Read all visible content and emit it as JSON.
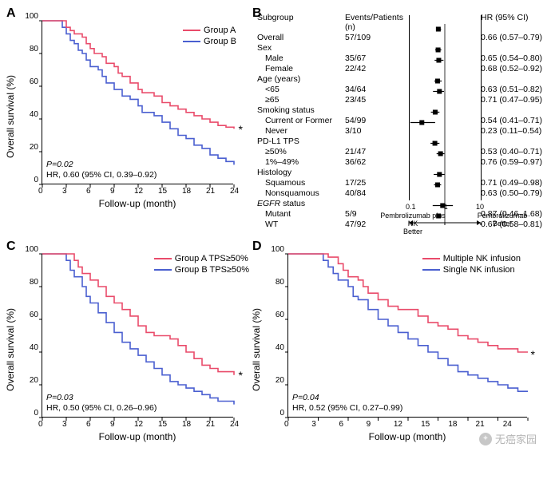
{
  "colors": {
    "groupA": "#e94b6a",
    "groupB": "#4a5fd0",
    "axis": "#000000",
    "forest_marker": "#000000",
    "background": "#ffffff"
  },
  "typography": {
    "axis_label_fontsize": 12,
    "tick_fontsize": 10,
    "legend_fontsize": 11,
    "stats_fontsize": 10.5,
    "panel_label_fontsize": 16,
    "forest_fontsize": 10.5
  },
  "panelA": {
    "label": "A",
    "type": "kaplan-meier",
    "ylabel": "Overall survival (%)",
    "xlabel": "Follow-up (month)",
    "xlim": [
      0,
      24
    ],
    "xtick_step": 3,
    "ylim": [
      0,
      100
    ],
    "ytick_step": 20,
    "legend": [
      {
        "label": "Group A",
        "color": "#e94b6a"
      },
      {
        "label": "Group B",
        "color": "#4a5fd0"
      }
    ],
    "stats_p": "P=0.02",
    "stats_hr": "HR, 0.60 (95% CI, 0.39–0.92)",
    "star": "*",
    "series": {
      "groupA": [
        [
          0,
          100
        ],
        [
          2,
          100
        ],
        [
          3,
          96
        ],
        [
          3.5,
          94
        ],
        [
          4,
          92
        ],
        [
          5,
          90
        ],
        [
          5.5,
          86
        ],
        [
          6,
          83
        ],
        [
          6.5,
          80
        ],
        [
          7.5,
          78
        ],
        [
          8,
          74
        ],
        [
          9,
          72
        ],
        [
          9.5,
          68
        ],
        [
          10,
          66
        ],
        [
          11,
          62
        ],
        [
          12,
          58
        ],
        [
          12.5,
          56
        ],
        [
          14,
          54
        ],
        [
          15,
          50
        ],
        [
          16,
          48
        ],
        [
          17,
          46
        ],
        [
          18,
          44
        ],
        [
          19,
          42
        ],
        [
          20,
          40
        ],
        [
          21,
          38
        ],
        [
          22,
          36
        ],
        [
          23,
          35
        ],
        [
          24,
          34
        ]
      ],
      "groupB": [
        [
          0,
          100
        ],
        [
          2,
          100
        ],
        [
          2.5,
          96
        ],
        [
          3,
          92
        ],
        [
          3.5,
          88
        ],
        [
          4,
          86
        ],
        [
          4.5,
          82
        ],
        [
          5,
          80
        ],
        [
          5.5,
          76
        ],
        [
          6,
          72
        ],
        [
          7,
          70
        ],
        [
          7.5,
          66
        ],
        [
          8,
          62
        ],
        [
          9,
          58
        ],
        [
          10,
          54
        ],
        [
          11,
          52
        ],
        [
          12,
          48
        ],
        [
          12.5,
          44
        ],
        [
          14,
          42
        ],
        [
          15,
          38
        ],
        [
          16,
          34
        ],
        [
          17,
          30
        ],
        [
          18,
          28
        ],
        [
          19,
          24
        ],
        [
          20,
          22
        ],
        [
          21,
          18
        ],
        [
          22,
          16
        ],
        [
          23,
          14
        ],
        [
          24,
          12
        ]
      ]
    }
  },
  "panelB": {
    "label": "B",
    "type": "forest",
    "headers": {
      "subgroup": "Subgroup",
      "events": "Events/Patients (n)",
      "hr": "HR (95% CI)"
    },
    "x_scale": "log",
    "xlim": [
      0.1,
      10
    ],
    "xticks": [
      0.1,
      1,
      10
    ],
    "ref_line": 1,
    "bottom_left": "Pembrolizumab plus NK\nBetter",
    "bottom_right": "Pembrolizumab\nBetter",
    "rows": [
      {
        "label": "Overall",
        "events": "57/109",
        "hr": 0.66,
        "lo": 0.57,
        "hi": 0.79,
        "display": "0.66 (0.57–0.79)",
        "indent": false
      },
      {
        "label": "Sex",
        "header": true
      },
      {
        "label": "Male",
        "events": "35/67",
        "hr": 0.65,
        "lo": 0.54,
        "hi": 0.8,
        "display": "0.65 (0.54–0.80)",
        "indent": true
      },
      {
        "label": "Female",
        "events": "22/42",
        "hr": 0.68,
        "lo": 0.52,
        "hi": 0.92,
        "display": "0.68 (0.52–0.92)",
        "indent": true
      },
      {
        "label": "Age (years)",
        "header": true
      },
      {
        "label": "<65",
        "events": "34/64",
        "hr": 0.63,
        "lo": 0.51,
        "hi": 0.82,
        "display": "0.63 (0.51–0.82)",
        "indent": true
      },
      {
        "label": "≥65",
        "events": "23/45",
        "hr": 0.71,
        "lo": 0.47,
        "hi": 0.95,
        "display": "0.71 (0.47–0.95)",
        "indent": true
      },
      {
        "label": "Smoking status",
        "header": true
      },
      {
        "label": "Current or Former",
        "events": "54/99",
        "hr": 0.54,
        "lo": 0.41,
        "hi": 0.71,
        "display": "0.54 (0.41–0.71)",
        "indent": true
      },
      {
        "label": "Never",
        "events": "3/10",
        "hr": 0.23,
        "lo": 0.11,
        "hi": 0.54,
        "display": "0.23 (0.11–0.54)",
        "indent": true
      },
      {
        "label": "PD-L1 TPS",
        "header": true
      },
      {
        "label": "≥50%",
        "events": "21/47",
        "hr": 0.53,
        "lo": 0.4,
        "hi": 0.71,
        "display": "0.53 (0.40–0.71)",
        "indent": true
      },
      {
        "label": "1%–49%",
        "events": "36/62",
        "hr": 0.76,
        "lo": 0.59,
        "hi": 0.97,
        "display": "0.76 (0.59–0.97)",
        "indent": true
      },
      {
        "label": "Histology",
        "header": true
      },
      {
        "label": "Squamous",
        "events": "17/25",
        "hr": 0.71,
        "lo": 0.49,
        "hi": 0.98,
        "display": "0.71 (0.49–0.98)",
        "indent": true
      },
      {
        "label": "Nonsquamous",
        "events": "40/84",
        "hr": 0.63,
        "lo": 0.5,
        "hi": 0.79,
        "display": "0.63 (0.50–0.79)",
        "indent": true
      },
      {
        "label": "EGFR status",
        "header": true,
        "italic": true
      },
      {
        "label": "Mutant",
        "events": "5/9",
        "hr": 0.87,
        "lo": 0.46,
        "hi": 1.68,
        "display": "0.87 (0.46–1.68)",
        "indent": true
      },
      {
        "label": "WT",
        "events": "47/92",
        "hr": 0.67,
        "lo": 0.58,
        "hi": 0.81,
        "display": "0.67 (0.58–0.81)",
        "indent": true
      }
    ]
  },
  "panelC": {
    "label": "C",
    "type": "kaplan-meier",
    "ylabel": "Overall survival (%)",
    "xlabel": "Follow-up (month)",
    "xlim": [
      0,
      24
    ],
    "xtick_step": 3,
    "ylim": [
      0,
      100
    ],
    "ytick_step": 20,
    "legend": [
      {
        "label": "Group A TPS≥50%",
        "color": "#e94b6a"
      },
      {
        "label": "Group B TPS≥50%",
        "color": "#4a5fd0"
      }
    ],
    "stats_p": "P=0.03",
    "stats_hr": "HR, 0.50 (95% CI, 0.26–0.96)",
    "star": "*",
    "series": {
      "groupA": [
        [
          0,
          100
        ],
        [
          3,
          100
        ],
        [
          4,
          96
        ],
        [
          4.5,
          92
        ],
        [
          5,
          88
        ],
        [
          6,
          84
        ],
        [
          7,
          80
        ],
        [
          8,
          74
        ],
        [
          9,
          70
        ],
        [
          10,
          66
        ],
        [
          11,
          62
        ],
        [
          12,
          56
        ],
        [
          13,
          52
        ],
        [
          14,
          50
        ],
        [
          15,
          50
        ],
        [
          16,
          48
        ],
        [
          17,
          44
        ],
        [
          18,
          40
        ],
        [
          19,
          36
        ],
        [
          20,
          32
        ],
        [
          21,
          30
        ],
        [
          22,
          28
        ],
        [
          23,
          28
        ],
        [
          24,
          26
        ]
      ],
      "groupB": [
        [
          0,
          100
        ],
        [
          2,
          100
        ],
        [
          3,
          96
        ],
        [
          3.5,
          90
        ],
        [
          4,
          86
        ],
        [
          5,
          80
        ],
        [
          5.5,
          74
        ],
        [
          6,
          70
        ],
        [
          7,
          64
        ],
        [
          8,
          58
        ],
        [
          9,
          52
        ],
        [
          10,
          46
        ],
        [
          11,
          42
        ],
        [
          12,
          38
        ],
        [
          13,
          34
        ],
        [
          14,
          30
        ],
        [
          15,
          26
        ],
        [
          16,
          22
        ],
        [
          17,
          20
        ],
        [
          18,
          18
        ],
        [
          19,
          16
        ],
        [
          20,
          14
        ],
        [
          21,
          12
        ],
        [
          22,
          10
        ],
        [
          23,
          10
        ],
        [
          24,
          8
        ]
      ]
    }
  },
  "panelD": {
    "label": "D",
    "type": "kaplan-meier",
    "ylabel": "Overall survival (%)",
    "xlabel": "Follow-up (month)",
    "xlim": [
      0,
      24
    ],
    "xtick_step": 3,
    "ylim": [
      0,
      100
    ],
    "ytick_step": 20,
    "legend": [
      {
        "label": "Multiple NK infusion",
        "color": "#e94b6a"
      },
      {
        "label": "Single NK infusion",
        "color": "#4a5fd0"
      }
    ],
    "stats_p": "P=0.04",
    "stats_hr": "HR, 0.52 (95% CI, 0.27–0.99)",
    "star": "*",
    "series": {
      "groupA": [
        [
          0,
          100
        ],
        [
          3,
          100
        ],
        [
          4,
          98
        ],
        [
          5,
          94
        ],
        [
          5.5,
          90
        ],
        [
          6,
          86
        ],
        [
          7,
          84
        ],
        [
          7.5,
          80
        ],
        [
          8,
          76
        ],
        [
          9,
          72
        ],
        [
          10,
          68
        ],
        [
          11,
          66
        ],
        [
          12,
          66
        ],
        [
          13,
          62
        ],
        [
          14,
          58
        ],
        [
          15,
          56
        ],
        [
          16,
          54
        ],
        [
          17,
          50
        ],
        [
          18,
          48
        ],
        [
          19,
          46
        ],
        [
          20,
          44
        ],
        [
          21,
          42
        ],
        [
          22,
          42
        ],
        [
          23,
          40
        ],
        [
          24,
          40
        ]
      ],
      "groupB": [
        [
          0,
          100
        ],
        [
          3,
          100
        ],
        [
          3.5,
          96
        ],
        [
          4,
          92
        ],
        [
          4.5,
          88
        ],
        [
          5,
          84
        ],
        [
          6,
          80
        ],
        [
          6.5,
          74
        ],
        [
          7,
          72
        ],
        [
          8,
          66
        ],
        [
          9,
          60
        ],
        [
          10,
          56
        ],
        [
          11,
          52
        ],
        [
          12,
          48
        ],
        [
          13,
          44
        ],
        [
          14,
          40
        ],
        [
          15,
          36
        ],
        [
          16,
          32
        ],
        [
          17,
          28
        ],
        [
          18,
          26
        ],
        [
          19,
          24
        ],
        [
          20,
          22
        ],
        [
          21,
          20
        ],
        [
          22,
          18
        ],
        [
          23,
          16
        ],
        [
          24,
          16
        ]
      ]
    }
  },
  "watermark": "无癌家园"
}
